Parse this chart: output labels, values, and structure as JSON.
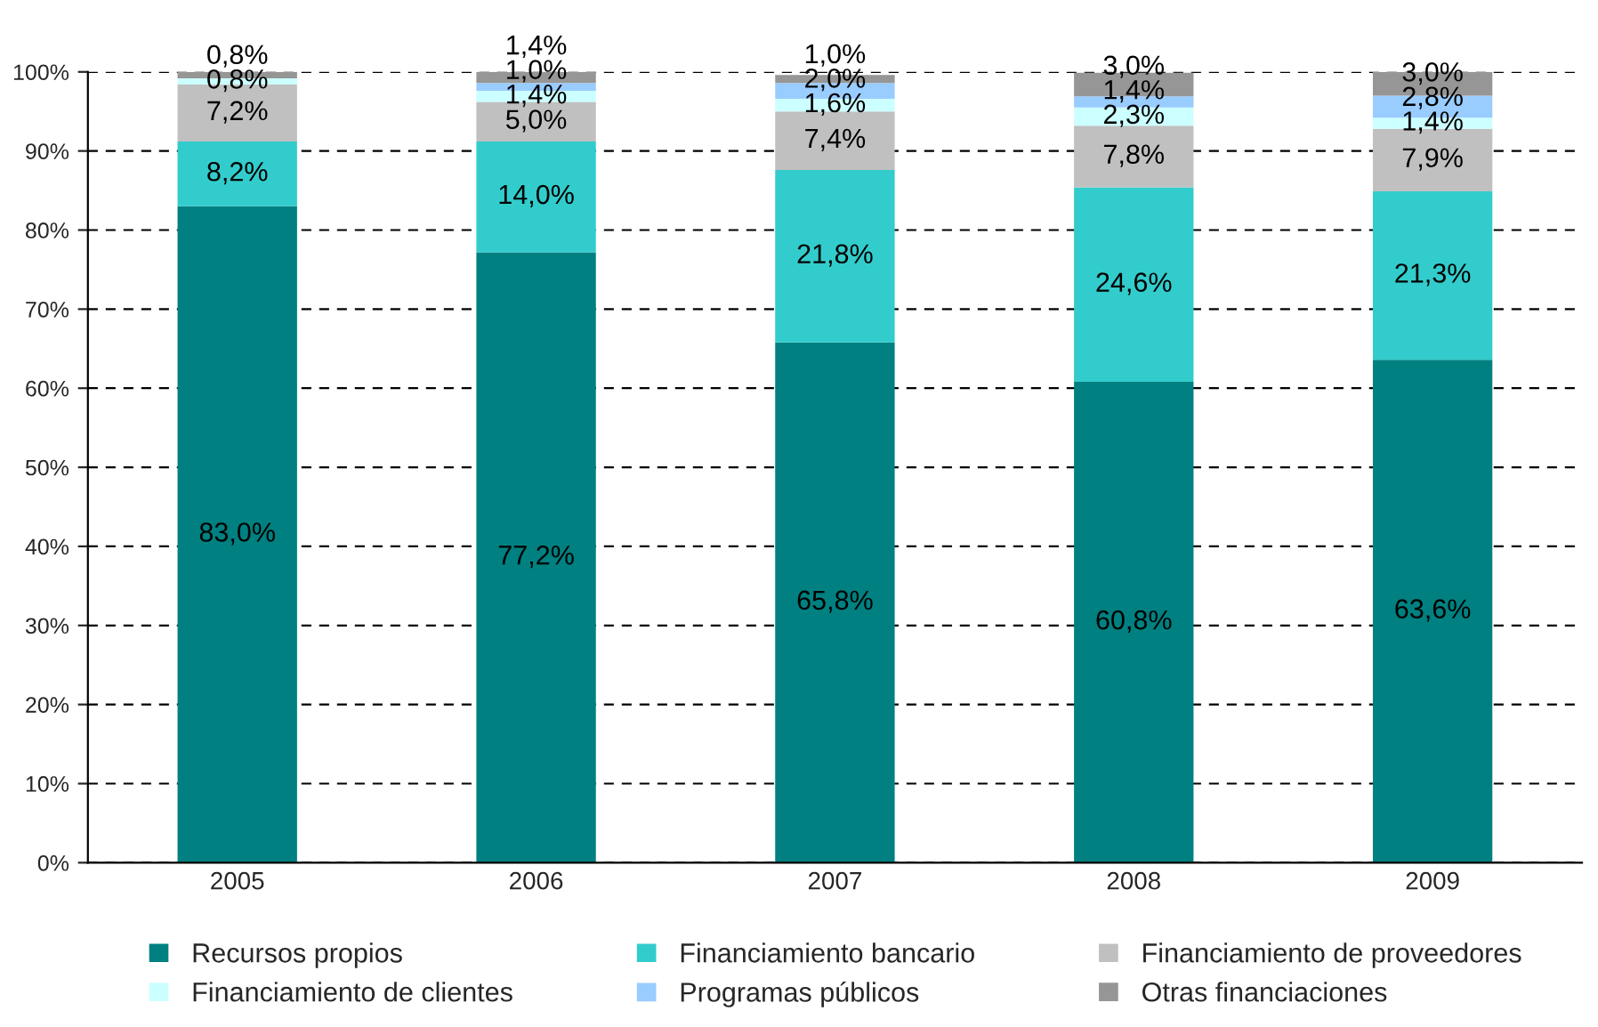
{
  "chart_data": {
    "type": "bar",
    "stacked": true,
    "categories": [
      "2005",
      "2006",
      "2007",
      "2008",
      "2009"
    ],
    "series": [
      {
        "name": "Recursos propios",
        "color": "#008080",
        "values": [
          83.0,
          77.2,
          65.8,
          60.8,
          63.6
        ],
        "value_labels": [
          "83,0%",
          "77,2%",
          "65,8%",
          "60,8%",
          "63,6%"
        ]
      },
      {
        "name": "Financiamiento bancario",
        "color": "#33cccc",
        "values": [
          8.2,
          14.0,
          21.8,
          24.6,
          21.3
        ],
        "value_labels": [
          "8,2%",
          "14,0%",
          "21,8%",
          "24,6%",
          "21,3%"
        ]
      },
      {
        "name": "Financiamiento de proveedores",
        "color": "#c0c0c0",
        "values": [
          7.2,
          5.0,
          7.4,
          7.8,
          7.9
        ],
        "value_labels": [
          "7,2%",
          "5,0%",
          "7,4%",
          "7,8%",
          "7,9%"
        ]
      },
      {
        "name": "Financiamiento de clientes",
        "color": "#ccffff",
        "values": [
          0.8,
          1.4,
          1.6,
          2.3,
          1.4
        ],
        "value_labels": [
          "0,8%",
          "1,4%",
          "1,6%",
          "2,3%",
          "1,4%"
        ]
      },
      {
        "name": "Programas públicos",
        "color": "#99ccff",
        "values": [
          0,
          1.0,
          2.0,
          1.4,
          2.8
        ],
        "value_labels": [
          null,
          "1,0%",
          "2,0%",
          "1,4%",
          "2,8%"
        ]
      },
      {
        "name": "Otras financiaciones",
        "color": "#969696",
        "values": [
          0.8,
          1.4,
          1.0,
          3.0,
          3.0
        ],
        "value_labels": [
          "0,8%",
          "1,4%",
          "1,0%",
          "3,0%",
          "3,0%"
        ]
      }
    ],
    "ylim": [
      0,
      100
    ],
    "yticks": [
      {
        "value": 0,
        "label": "0%"
      },
      {
        "value": 10,
        "label": "10%"
      },
      {
        "value": 20,
        "label": "20%"
      },
      {
        "value": 30,
        "label": "30%"
      },
      {
        "value": 40,
        "label": "40%"
      },
      {
        "value": 50,
        "label": "50%"
      },
      {
        "value": 60,
        "label": "60%"
      },
      {
        "value": 70,
        "label": "70%"
      },
      {
        "value": 80,
        "label": "80%"
      },
      {
        "value": 90,
        "label": "90%"
      },
      {
        "value": 100,
        "label": "100%"
      }
    ],
    "grid": "y",
    "line_style": "dashed",
    "legend": "bottom"
  }
}
